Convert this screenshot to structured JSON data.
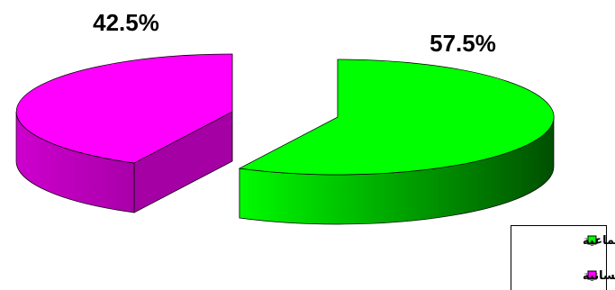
{
  "chart_data": {
    "type": "pie",
    "categories": [
      "علوم اجتماعية",
      "علوم إنسانية"
    ],
    "values": [
      57.5,
      42.5
    ],
    "data_labels": [
      "57.5%",
      "42.5%"
    ],
    "legend_position": "bottom-right",
    "three_d": true,
    "exploded": true
  },
  "colors": {
    "series": [
      "#00ff00",
      "#ff00ff"
    ],
    "series_side": [
      "#00a400",
      "#a400a4"
    ],
    "series_side_dark": [
      "#004f00",
      "#6e006e"
    ],
    "outline": "#000000"
  }
}
